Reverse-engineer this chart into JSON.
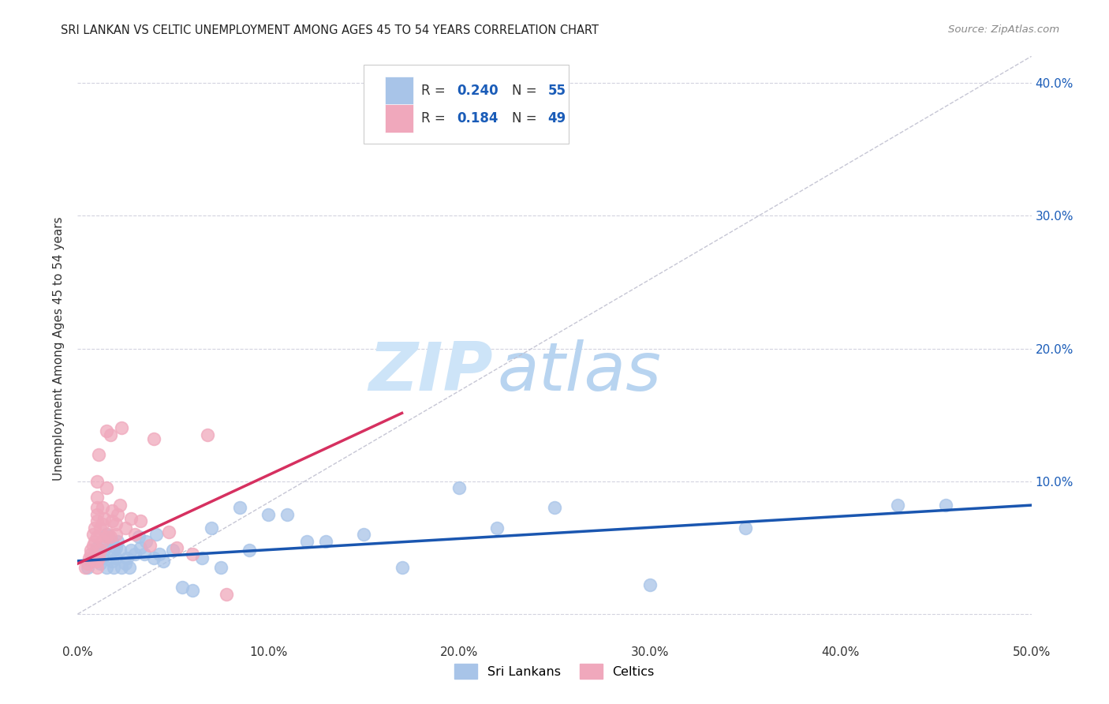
{
  "title": "SRI LANKAN VS CELTIC UNEMPLOYMENT AMONG AGES 45 TO 54 YEARS CORRELATION CHART",
  "source": "Source: ZipAtlas.com",
  "ylabel": "Unemployment Among Ages 45 to 54 years",
  "xlim": [
    0.0,
    0.5
  ],
  "ylim": [
    -0.02,
    0.42
  ],
  "xticks": [
    0.0,
    0.1,
    0.2,
    0.3,
    0.4,
    0.5
  ],
  "yticks": [
    0.0,
    0.1,
    0.2,
    0.3,
    0.4
  ],
  "ytick_labels_right": [
    "",
    "10.0%",
    "20.0%",
    "30.0%",
    "40.0%"
  ],
  "xtick_labels": [
    "0.0%",
    "10.0%",
    "20.0%",
    "30.0%",
    "40.0%",
    "50.0%"
  ],
  "sri_lankan_color": "#a8c4e8",
  "celtic_color": "#f0a8bc",
  "sri_lankan_line_color": "#1a56b0",
  "celtic_line_color": "#d63060",
  "ref_line_color": "#c0c0d0",
  "legend_text_color": "#1a5cb8",
  "watermark_zip_color": "#cfe0f5",
  "watermark_atlas_color": "#b8d0ec",
  "sri_R": 0.24,
  "sri_N": 55,
  "celtic_R": 0.184,
  "celtic_N": 49,
  "sri_x": [
    0.005,
    0.007,
    0.008,
    0.01,
    0.01,
    0.012,
    0.013,
    0.014,
    0.015,
    0.015,
    0.015,
    0.016,
    0.018,
    0.018,
    0.019,
    0.019,
    0.02,
    0.02,
    0.021,
    0.022,
    0.023,
    0.025,
    0.026,
    0.027,
    0.028,
    0.03,
    0.032,
    0.033,
    0.035,
    0.036,
    0.04,
    0.041,
    0.043,
    0.045,
    0.05,
    0.055,
    0.06,
    0.065,
    0.07,
    0.075,
    0.085,
    0.09,
    0.1,
    0.11,
    0.12,
    0.13,
    0.15,
    0.17,
    0.2,
    0.22,
    0.25,
    0.3,
    0.35,
    0.43,
    0.455
  ],
  "sri_y": [
    0.035,
    0.04,
    0.042,
    0.045,
    0.05,
    0.038,
    0.042,
    0.048,
    0.052,
    0.06,
    0.035,
    0.058,
    0.04,
    0.055,
    0.048,
    0.035,
    0.05,
    0.042,
    0.055,
    0.048,
    0.035,
    0.038,
    0.042,
    0.035,
    0.048,
    0.045,
    0.058,
    0.05,
    0.045,
    0.055,
    0.042,
    0.06,
    0.045,
    0.04,
    0.048,
    0.02,
    0.018,
    0.042,
    0.065,
    0.035,
    0.08,
    0.048,
    0.075,
    0.075,
    0.055,
    0.055,
    0.06,
    0.035,
    0.095,
    0.065,
    0.08,
    0.022,
    0.065,
    0.082,
    0.082
  ],
  "cel_x": [
    0.004,
    0.005,
    0.006,
    0.007,
    0.007,
    0.008,
    0.008,
    0.009,
    0.009,
    0.01,
    0.01,
    0.01,
    0.01,
    0.01,
    0.01,
    0.01,
    0.01,
    0.011,
    0.011,
    0.012,
    0.012,
    0.013,
    0.013,
    0.013,
    0.014,
    0.015,
    0.015,
    0.015,
    0.016,
    0.017,
    0.017,
    0.018,
    0.018,
    0.02,
    0.02,
    0.021,
    0.022,
    0.023,
    0.025,
    0.028,
    0.03,
    0.033,
    0.038,
    0.04,
    0.048,
    0.052,
    0.06,
    0.068,
    0.078
  ],
  "cel_y": [
    0.035,
    0.038,
    0.042,
    0.045,
    0.048,
    0.052,
    0.06,
    0.055,
    0.065,
    0.04,
    0.058,
    0.07,
    0.075,
    0.08,
    0.088,
    0.1,
    0.035,
    0.042,
    0.12,
    0.048,
    0.065,
    0.055,
    0.068,
    0.08,
    0.072,
    0.058,
    0.095,
    0.138,
    0.06,
    0.058,
    0.135,
    0.07,
    0.078,
    0.06,
    0.068,
    0.075,
    0.082,
    0.14,
    0.065,
    0.072,
    0.06,
    0.07,
    0.052,
    0.132,
    0.062,
    0.05,
    0.045,
    0.135,
    0.015
  ]
}
